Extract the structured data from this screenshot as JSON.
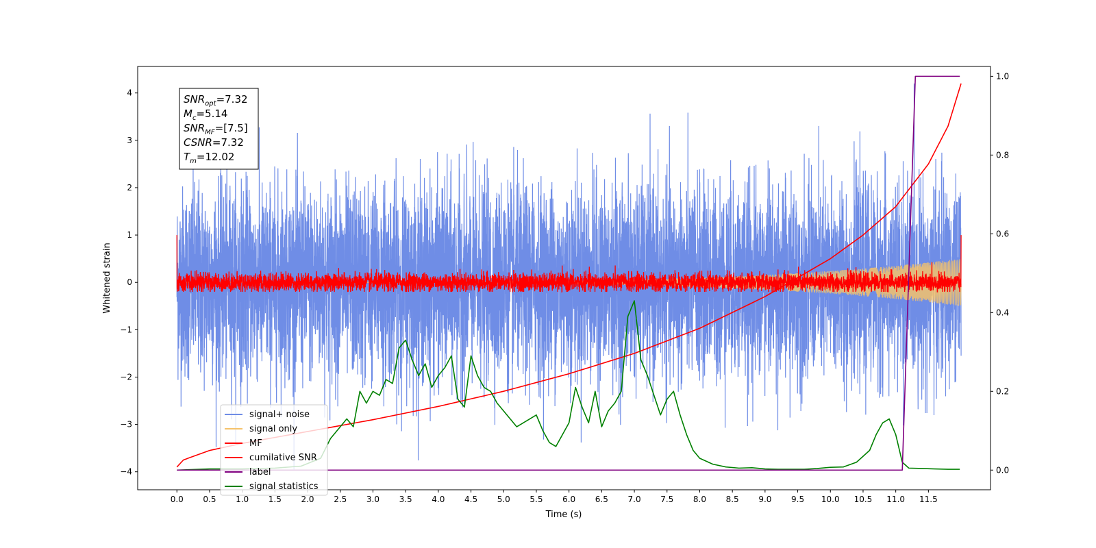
{
  "chart_data": {
    "type": "line",
    "xlabel": "Time (s)",
    "ylabel": "Whitened strain",
    "xlim": [
      -0.6,
      12.45
    ],
    "ylim": [
      -4.38,
      4.56
    ],
    "y2lim": [
      -0.05,
      1.025
    ],
    "xticks": [
      0.0,
      0.5,
      1.0,
      1.5,
      2.0,
      2.5,
      3.0,
      3.5,
      4.0,
      4.5,
      5.0,
      5.5,
      6.0,
      6.5,
      7.0,
      7.5,
      8.0,
      8.5,
      9.0,
      9.5,
      10.0,
      10.5,
      11.0,
      11.5
    ],
    "xtick_labels": [
      "0.0",
      "0.5",
      "1.0",
      "1.5",
      "2.0",
      "2.5",
      "3.0",
      "3.5",
      "4.0",
      "4.5",
      "5.0",
      "5.5",
      "6.0",
      "6.5",
      "7.0",
      "7.5",
      "8.0",
      "8.5",
      "9.0",
      "9.5",
      "10.0",
      "10.5",
      "11.0",
      "11.5"
    ],
    "yticks": [
      -4,
      -3,
      -2,
      -1,
      0,
      1,
      2,
      3,
      4
    ],
    "ytick_labels": [
      "−4",
      "−3",
      "−2",
      "−1",
      "0",
      "1",
      "2",
      "3",
      "4"
    ],
    "y2ticks": [
      0.0,
      0.2,
      0.4,
      0.6,
      0.8,
      1.0
    ],
    "y2tick_labels": [
      "0.0",
      "0.2",
      "0.4",
      "0.6",
      "0.8",
      "1.0"
    ],
    "annotation": {
      "lines": [
        {
          "sym": "SNR",
          "sub": "opt",
          "value": "=7.32"
        },
        {
          "sym": "M",
          "sub": "c",
          "value": "=5.14"
        },
        {
          "sym": "SNR",
          "sub": "MF",
          "value": "=[7.5]"
        },
        {
          "sym": "CSNR",
          "sub": "",
          "value": "=7.32"
        },
        {
          "sym": "T",
          "sub": "m",
          "value": "=12.02"
        }
      ]
    },
    "legend": {
      "placement": "lower-left",
      "entries": [
        "signal+ noise",
        "signal only",
        "MF",
        "cumilative SNR",
        "label",
        "signal statistics"
      ]
    },
    "series": [
      {
        "name": "signal+ noise",
        "axis": "left",
        "color": "#6f8de6",
        "x_range": [
          0.0,
          12.0
        ],
        "spread": 1.0,
        "peak_max": 4.2,
        "peak_min": -3.95
      },
      {
        "name": "signal only",
        "axis": "left",
        "color": "#f5c26b",
        "x_range": [
          0.0,
          12.0
        ],
        "amplitude_start": 0.0,
        "amplitude_end": 0.5
      },
      {
        "name": "MF",
        "axis": "left",
        "color": "#ff0000",
        "x_range": [
          0.0,
          12.0
        ],
        "spread": 0.1,
        "peak_max": 0.45,
        "edge_value": 1.0
      },
      {
        "name": "cumilative SNR",
        "axis": "left",
        "color": "#ff0000",
        "x": [
          0.0,
          0.1,
          0.5,
          1.0,
          2.0,
          3.0,
          4.0,
          5.0,
          6.0,
          7.0,
          8.0,
          9.0,
          10.0,
          10.5,
          11.0,
          11.5,
          11.8,
          12.0
        ],
        "y": [
          -3.9,
          -3.75,
          -3.55,
          -3.4,
          -3.15,
          -2.9,
          -2.62,
          -2.3,
          -1.93,
          -1.5,
          -0.97,
          -0.3,
          0.5,
          1.0,
          1.6,
          2.5,
          3.3,
          4.2
        ]
      },
      {
        "name": "label",
        "axis": "right",
        "color": "#800080",
        "x": [
          0.0,
          11.1,
          11.3,
          11.98
        ],
        "y": [
          0.0,
          0.0,
          1.0,
          1.0
        ]
      },
      {
        "name": "signal statistics",
        "axis": "right",
        "color": "#008000",
        "x": [
          0.0,
          0.5,
          1.0,
          1.5,
          1.9,
          2.2,
          2.35,
          2.45,
          2.6,
          2.7,
          2.8,
          2.9,
          3.0,
          3.1,
          3.2,
          3.3,
          3.4,
          3.5,
          3.6,
          3.7,
          3.8,
          3.9,
          4.0,
          4.1,
          4.2,
          4.3,
          4.4,
          4.5,
          4.6,
          4.7,
          4.8,
          4.9,
          5.0,
          5.1,
          5.2,
          5.3,
          5.4,
          5.5,
          5.6,
          5.7,
          5.8,
          5.9,
          6.0,
          6.1,
          6.2,
          6.3,
          6.4,
          6.5,
          6.6,
          6.7,
          6.8,
          6.9,
          7.0,
          7.1,
          7.2,
          7.3,
          7.4,
          7.5,
          7.6,
          7.7,
          7.8,
          7.9,
          8.0,
          8.2,
          8.4,
          8.6,
          8.8,
          9.0,
          9.2,
          9.4,
          9.6,
          9.8,
          10.0,
          10.2,
          10.4,
          10.6,
          10.7,
          10.8,
          10.9,
          11.0,
          11.1,
          11.2,
          11.4,
          11.6,
          11.8,
          11.98
        ],
        "y": [
          0.0,
          0.003,
          0.003,
          0.005,
          0.01,
          0.03,
          0.08,
          0.1,
          0.13,
          0.11,
          0.2,
          0.17,
          0.2,
          0.19,
          0.23,
          0.22,
          0.31,
          0.33,
          0.28,
          0.24,
          0.27,
          0.21,
          0.24,
          0.26,
          0.29,
          0.18,
          0.16,
          0.29,
          0.24,
          0.21,
          0.2,
          0.17,
          0.15,
          0.13,
          0.11,
          0.12,
          0.13,
          0.14,
          0.1,
          0.07,
          0.06,
          0.09,
          0.12,
          0.21,
          0.16,
          0.12,
          0.2,
          0.11,
          0.15,
          0.17,
          0.2,
          0.39,
          0.43,
          0.28,
          0.24,
          0.19,
          0.14,
          0.18,
          0.2,
          0.14,
          0.09,
          0.05,
          0.03,
          0.015,
          0.008,
          0.005,
          0.006,
          0.003,
          0.002,
          0.002,
          0.002,
          0.004,
          0.007,
          0.008,
          0.02,
          0.05,
          0.09,
          0.12,
          0.13,
          0.09,
          0.02,
          0.005,
          0.004,
          0.003,
          0.002,
          0.002
        ]
      }
    ]
  }
}
